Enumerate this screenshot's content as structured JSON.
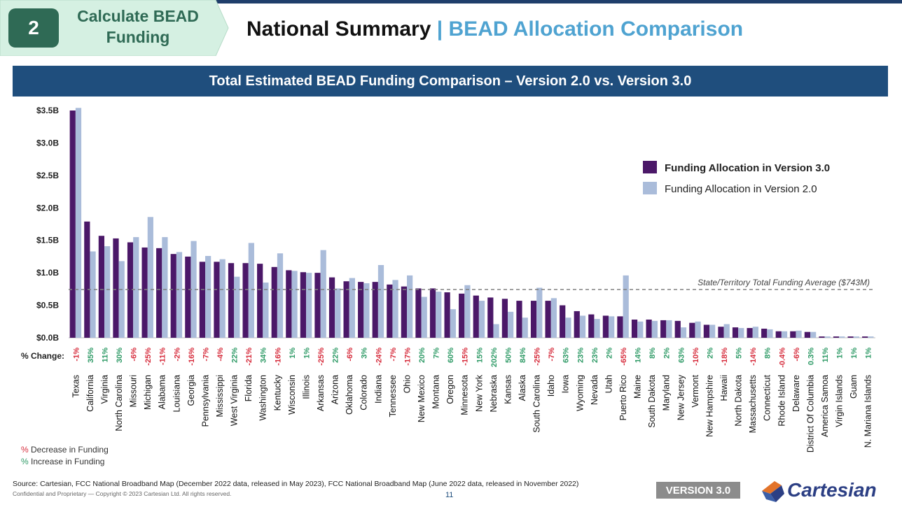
{
  "step": {
    "number": "2",
    "label_line1": "Calculate BEAD",
    "label_line2": "Funding"
  },
  "title": {
    "main": "National Summary",
    "separator": "|",
    "sub": "BEAD Allocation Comparison"
  },
  "chart_header": "Total Estimated BEAD Funding Comparison – Version 2.0 vs. Version 3.0",
  "change_label": "% Change:",
  "legend_notes": {
    "decrease_symbol": "%",
    "decrease_text": "Decrease in Funding",
    "increase_symbol": "%",
    "increase_text": "Increase in Funding"
  },
  "source": "Source: Cartesian, FCC National Broadband Map (December 2022 data, released in May 2023), FCC National Broadband Map (June 2022 data, released in November 2022)",
  "copyright": "Confidential and Proprietary — Copyright © 2023 Cartesian Ltd. All rights reserved.",
  "page_number": "11",
  "version_badge": "VERSION 3.0",
  "brand": "Cartesian",
  "colors": {
    "v3": "#4b1868",
    "v2": "#aabcda",
    "decrease": "#d62b3b",
    "increase": "#2e9a66",
    "header": "#1f4e7d",
    "accent": "#4fa3d1",
    "step": "#2f6a55"
  },
  "chart_data": {
    "type": "bar",
    "ylim": [
      0,
      3.5
    ],
    "yticks": [
      "$0.0B",
      "$0.5B",
      "$1.0B",
      "$1.5B",
      "$2.0B",
      "$2.5B",
      "$3.0B",
      "$3.5B"
    ],
    "grid": false,
    "legend_position": "right",
    "average_line": {
      "value": 0.743,
      "label": "State/Territory Total Funding Average ($743M)"
    },
    "categories": [
      "Texas",
      "California",
      "Virginia",
      "North Carolina",
      "Missouri",
      "Michigan",
      "Alabama",
      "Louisiana",
      "Georgia",
      "Pennsylvania",
      "Mississippi",
      "West Virginia",
      "Florida",
      "Washington",
      "Kentucky",
      "Wisconsin",
      "Illinois",
      "Arkansas",
      "Arizona",
      "Oklahoma",
      "Colorado",
      "Indiana",
      "Tennessee",
      "Ohio",
      "New Mexico",
      "Montana",
      "Oregon",
      "Minnesota",
      "New York",
      "Nebraska",
      "Kansas",
      "Alaska",
      "South Carolina",
      "Idaho",
      "Iowa",
      "Wyoming",
      "Nevada",
      "Utah",
      "Puerto Rico",
      "Maine",
      "South Dakota",
      "Maryland",
      "New Jersey",
      "Vermont",
      "New Hampshire",
      "Hawaii",
      "North Dakota",
      "Massachusetts",
      "Connecticut",
      "Rhode Island",
      "Delaware",
      "District Of Columbia",
      "America Samoa",
      "Virgin Islands",
      "Guam",
      "N. Mariana Islands"
    ],
    "series": [
      {
        "name": "Funding Allocation in Version 3.0",
        "values": [
          3.5,
          1.79,
          1.57,
          1.53,
          1.47,
          1.39,
          1.38,
          1.29,
          1.25,
          1.17,
          1.17,
          1.15,
          1.15,
          1.14,
          1.09,
          1.04,
          1.01,
          1.0,
          0.93,
          0.87,
          0.86,
          0.86,
          0.82,
          0.79,
          0.76,
          0.76,
          0.7,
          0.68,
          0.65,
          0.62,
          0.6,
          0.57,
          0.57,
          0.57,
          0.5,
          0.41,
          0.36,
          0.34,
          0.33,
          0.28,
          0.28,
          0.27,
          0.26,
          0.23,
          0.2,
          0.17,
          0.16,
          0.15,
          0.14,
          0.1,
          0.1,
          0.09,
          0.02,
          0.02,
          0.02,
          0.02
        ]
      },
      {
        "name": "Funding Allocation in Version 2.0",
        "values": [
          3.54,
          1.33,
          1.41,
          1.18,
          1.55,
          1.86,
          1.55,
          1.32,
          1.49,
          1.26,
          1.21,
          0.94,
          1.46,
          0.85,
          1.3,
          1.03,
          1.0,
          1.35,
          0.76,
          0.92,
          0.84,
          1.12,
          0.89,
          0.96,
          0.63,
          0.71,
          0.44,
          0.81,
          0.57,
          0.21,
          0.4,
          0.31,
          0.77,
          0.61,
          0.31,
          0.34,
          0.29,
          0.33,
          0.96,
          0.25,
          0.26,
          0.27,
          0.16,
          0.25,
          0.2,
          0.21,
          0.15,
          0.17,
          0.13,
          0.1,
          0.11,
          0.09,
          0.02,
          0.02,
          0.02,
          0.02
        ]
      }
    ],
    "pct_change": [
      "-1%",
      "35%",
      "11%",
      "30%",
      "-6%",
      "-25%",
      "-11%",
      "-2%",
      "-16%",
      "-7%",
      "-4%",
      "22%",
      "-21%",
      "34%",
      "-16%",
      "1%",
      "1%",
      "-25%",
      "22%",
      "-6%",
      "3%",
      "-24%",
      "-7%",
      "-17%",
      "20%",
      "7%",
      "60%",
      "-15%",
      "15%",
      "202%",
      "50%",
      "84%",
      "-25%",
      "-7%",
      "63%",
      "23%",
      "23%",
      "2%",
      "-65%",
      "14%",
      "8%",
      "2%",
      "63%",
      "-10%",
      "2%",
      "-18%",
      "5%",
      "-14%",
      "8%",
      "-0.4%",
      "-6%",
      "0.3%",
      "11%",
      "1%",
      "1%",
      "1%"
    ]
  }
}
